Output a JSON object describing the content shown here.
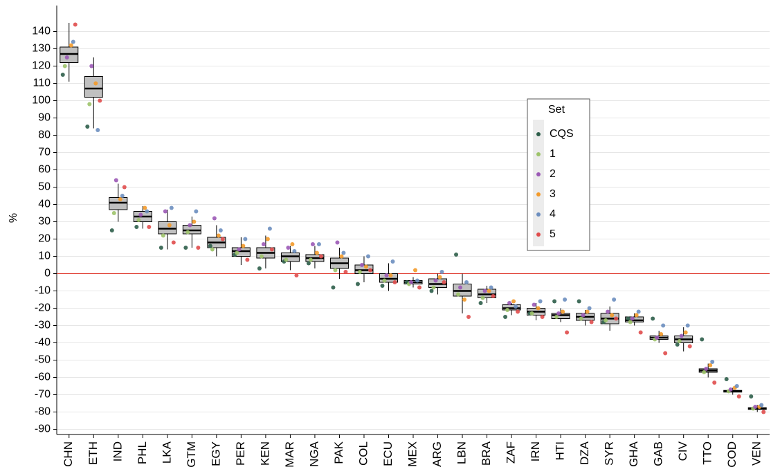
{
  "chart_data": {
    "type": "box",
    "ylabel": "%",
    "categories": [
      "CHN",
      "ETH",
      "IND",
      "PHL",
      "LKA",
      "GTM",
      "EGY",
      "PER",
      "KEN",
      "MAR",
      "NGA",
      "PAK",
      "COL",
      "ECU",
      "MEX",
      "ARG",
      "LBN",
      "BRA",
      "ZAF",
      "IRN",
      "HTI",
      "DZA",
      "SYR",
      "GHA",
      "GAB",
      "CIV",
      "TTO",
      "COD",
      "VEN"
    ],
    "boxes": [
      {
        "min": 111,
        "q1": 122,
        "median": 127,
        "q3": 131,
        "max": 145
      },
      {
        "min": 84,
        "q1": 102,
        "median": 107,
        "q3": 114,
        "max": 125
      },
      {
        "min": 30,
        "q1": 37,
        "median": 41,
        "q3": 44,
        "max": 52
      },
      {
        "min": 26,
        "q1": 30,
        "median": 33,
        "q3": 36,
        "max": 39
      },
      {
        "min": 14,
        "q1": 23,
        "median": 26,
        "q3": 30,
        "max": 37
      },
      {
        "min": 15,
        "q1": 23,
        "median": 25,
        "q3": 28,
        "max": 33
      },
      {
        "min": 10,
        "q1": 15,
        "median": 18,
        "q3": 21,
        "max": 28
      },
      {
        "min": 5,
        "q1": 10,
        "median": 13,
        "q3": 15,
        "max": 21
      },
      {
        "min": 3,
        "q1": 9,
        "median": 12,
        "q3": 15,
        "max": 22
      },
      {
        "min": 2,
        "q1": 7,
        "median": 10,
        "q3": 12,
        "max": 16
      },
      {
        "min": 3,
        "q1": 7,
        "median": 9,
        "q3": 11,
        "max": 16
      },
      {
        "min": -3,
        "q1": 3,
        "median": 6,
        "q3": 9,
        "max": 15
      },
      {
        "min": -5,
        "q1": 0,
        "median": 2,
        "q3": 5,
        "max": 10
      },
      {
        "min": -10,
        "q1": -5,
        "median": -3,
        "q3": 0,
        "max": 6
      },
      {
        "min": -8,
        "q1": -6,
        "median": -5,
        "q3": -4,
        "max": -2
      },
      {
        "min": -12,
        "q1": -8,
        "median": -6,
        "q3": -3,
        "max": 0
      },
      {
        "min": -23,
        "q1": -13,
        "median": -10,
        "q3": -6,
        "max": 0
      },
      {
        "min": -17,
        "q1": -14,
        "median": -12,
        "q3": -9,
        "max": -7
      },
      {
        "min": -24,
        "q1": -21,
        "median": -20,
        "q3": -18,
        "max": -17
      },
      {
        "min": -27,
        "q1": -24,
        "median": -22,
        "q3": -20,
        "max": -17
      },
      {
        "min": -28,
        "q1": -26,
        "median": -24,
        "q3": -23,
        "max": -20
      },
      {
        "min": -30,
        "q1": -27,
        "median": -25,
        "q3": -23,
        "max": -21
      },
      {
        "min": -33,
        "q1": -29,
        "median": -26,
        "q3": -23,
        "max": -19
      },
      {
        "min": -30,
        "q1": -28,
        "median": -27,
        "q3": -25,
        "max": -23
      },
      {
        "min": -40,
        "q1": -38,
        "median": -37,
        "q3": -36,
        "max": -33
      },
      {
        "min": -45,
        "q1": -40,
        "median": -38,
        "q3": -36,
        "max": -31
      },
      {
        "min": -60,
        "q1": -57,
        "median": -56,
        "q3": -55,
        "max": -52
      },
      {
        "min": -70,
        "q1": -68.5,
        "median": -68,
        "q3": -67.5,
        "max": -66
      },
      {
        "min": -80,
        "q1": -78.5,
        "median": -78,
        "q3": -77.5,
        "max": -76
      }
    ],
    "series": [
      {
        "name": "CQS",
        "color": "#2d5e4a",
        "values": [
          115,
          85,
          25,
          27,
          15,
          15,
          16,
          11,
          3,
          7,
          6,
          -8,
          -6,
          -7,
          -5,
          -10,
          11,
          -17,
          -25,
          -23,
          -16,
          -16,
          -28,
          -26,
          -26,
          -41,
          -38,
          -61,
          -71
        ]
      },
      {
        "name": "1",
        "color": "#9dc36a",
        "values": [
          120,
          98,
          35,
          31,
          22,
          24,
          14,
          12,
          10,
          8,
          8,
          2,
          1,
          -4,
          -6,
          -8,
          -12,
          -14,
          -21,
          -23,
          -25,
          -26,
          -27,
          -28,
          -38,
          -39,
          -57,
          -68,
          -78
        ]
      },
      {
        "name": "2",
        "color": "#9b59b6",
        "values": [
          125,
          120,
          54,
          34,
          36,
          28,
          32,
          14,
          17,
          15,
          17,
          18,
          5,
          -1,
          -5,
          -4,
          -8,
          -10,
          -17,
          -18,
          -23,
          -24,
          -22,
          -26,
          -37,
          -36,
          -55,
          -67,
          -77
        ]
      },
      {
        "name": "3",
        "color": "#f39a2a",
        "values": [
          132,
          110,
          43,
          38,
          28,
          30,
          22,
          16,
          20,
          17,
          12,
          10,
          4,
          -1,
          2,
          -2,
          -15,
          -10,
          -16,
          -20,
          -22,
          -22,
          -24,
          -24,
          -35,
          -34,
          -53,
          -66,
          -77
        ]
      },
      {
        "name": "4",
        "color": "#6c8ebf",
        "values": [
          134,
          83,
          45,
          36,
          38,
          36,
          25,
          20,
          26,
          13,
          17,
          12,
          10,
          7,
          -4,
          1,
          -5,
          -8,
          -19,
          -16,
          -15,
          -20,
          -15,
          -22,
          -30,
          -30,
          -51,
          -65,
          -76
        ]
      },
      {
        "name": "5",
        "color": "#e04c4c",
        "values": [
          144,
          100,
          50,
          27,
          18,
          15,
          20,
          8,
          14,
          -1,
          10,
          1,
          2,
          -5,
          -8,
          -5,
          -25,
          -13,
          -22,
          -25,
          -34,
          -28,
          -26,
          -34,
          -46,
          -42,
          -63,
          -71,
          -80
        ]
      }
    ],
    "legend_title": "Set",
    "ylim": [
      -93,
      155
    ],
    "yticks": [
      -90,
      -80,
      -70,
      -60,
      -50,
      -40,
      -30,
      -20,
      -10,
      0,
      10,
      20,
      30,
      40,
      50,
      60,
      70,
      80,
      90,
      100,
      110,
      120,
      130,
      140
    ],
    "grid": true,
    "hline": {
      "value": 0,
      "color": "#e03c31"
    },
    "box_color": "#c0c0c0"
  }
}
